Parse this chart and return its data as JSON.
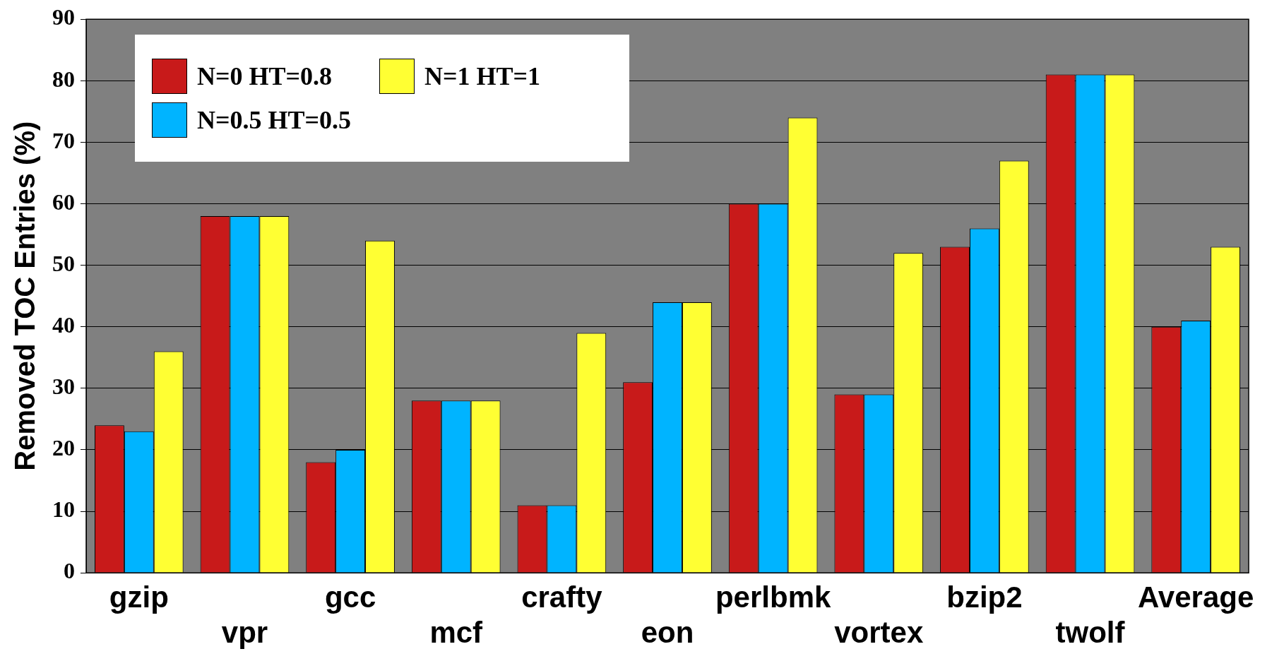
{
  "chart_data": {
    "type": "bar",
    "ylabel": "Removed TOC Entries (%)",
    "categories": [
      "gzip",
      "vpr",
      "gcc",
      "mcf",
      "crafty",
      "eon",
      "perlbmk",
      "vortex",
      "bzip2",
      "twolf",
      "Average"
    ],
    "series": [
      {
        "name": "N=0 HT=0.8",
        "color": "#c81a1a",
        "values": [
          24,
          58,
          18,
          28,
          11,
          31,
          60,
          29,
          53,
          81,
          40
        ]
      },
      {
        "name": "N=0.5 HT=0.5",
        "color": "#00b4ff",
        "values": [
          23,
          58,
          20,
          28,
          11,
          44,
          60,
          29,
          56,
          81,
          41
        ]
      },
      {
        "name": "N=1 HT=1",
        "color": "#ffff33",
        "values": [
          36,
          58,
          54,
          28,
          39,
          44,
          74,
          52,
          67,
          81,
          53
        ]
      }
    ],
    "ylim": [
      0,
      90
    ],
    "yticks": [
      0,
      10,
      20,
      30,
      40,
      50,
      60,
      70,
      80,
      90
    ],
    "grid": "y",
    "legend": "top left"
  }
}
